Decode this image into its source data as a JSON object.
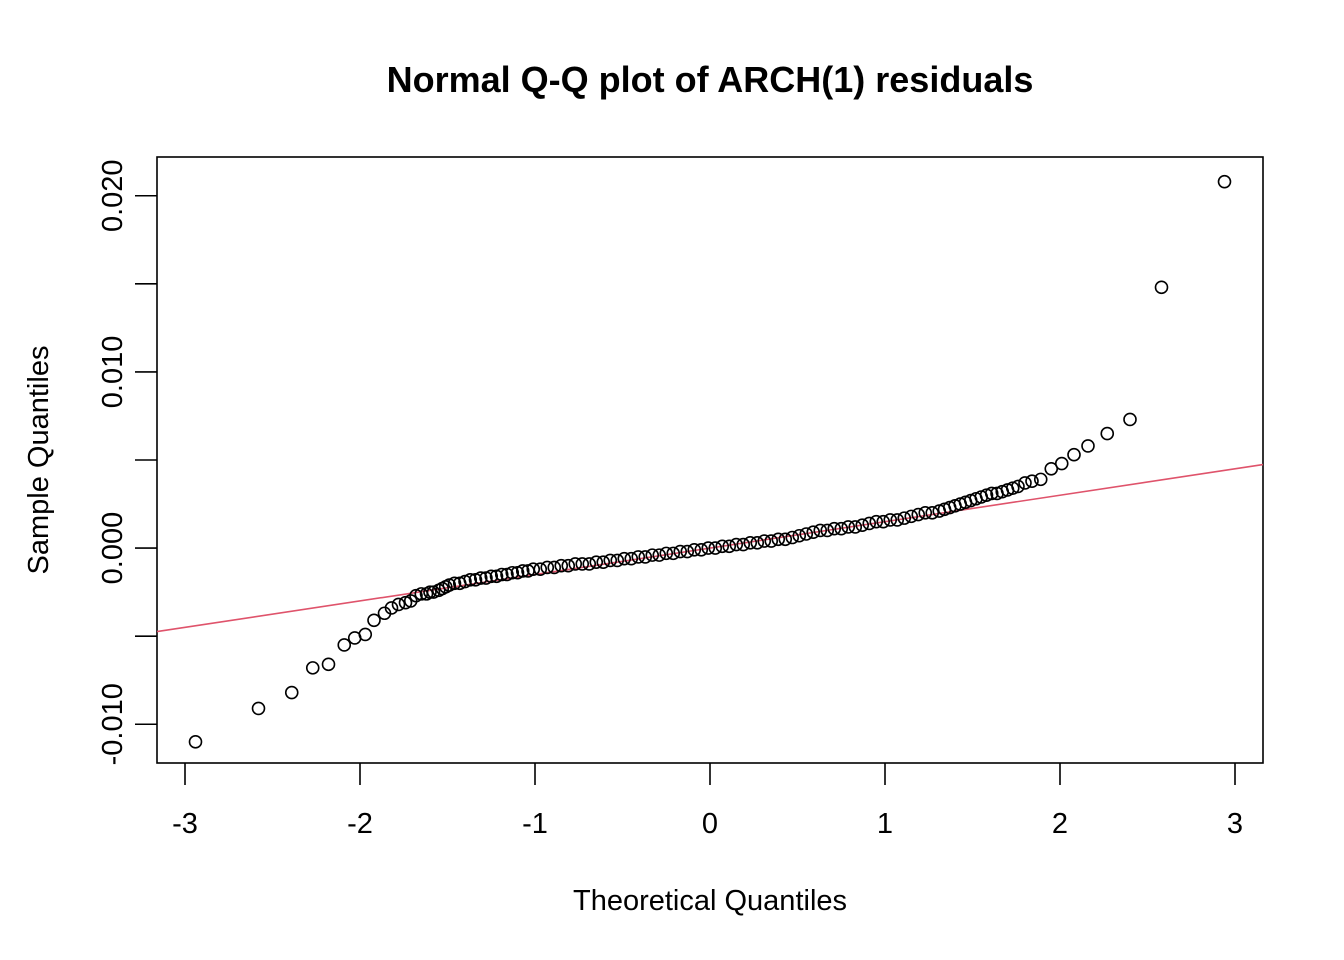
{
  "chart_data": {
    "type": "scatter",
    "title": "Normal Q-Q plot of ARCH(1) residuals",
    "xlabel": "Theoretical Quantiles",
    "ylabel": "Sample Quantiles",
    "xlim": [
      -3.16,
      3.16
    ],
    "ylim": [
      -0.0122,
      0.0222
    ],
    "xticks": [
      -3,
      -2,
      -1,
      0,
      1,
      2,
      3
    ],
    "xtick_labels": [
      "-3",
      "-2",
      "-1",
      "0",
      "1",
      "2",
      "3"
    ],
    "yticks": [
      -0.01,
      -0.005,
      0.0,
      0.005,
      0.01,
      0.015,
      0.02
    ],
    "ytick_labels": [
      "-0.010",
      "",
      "0.000",
      "",
      "0.010",
      "",
      "0.020"
    ],
    "grid": false,
    "reference_line": {
      "color": "#DF536B",
      "intercept": 0.0,
      "slope": 0.0015
    },
    "points": {
      "x": [
        -2.94,
        -2.58,
        -2.39,
        -2.27,
        -2.18,
        -2.09,
        -2.03,
        -1.97,
        -1.92,
        -1.86,
        -1.82,
        -1.78,
        -1.74,
        -1.71,
        -1.68,
        -1.65,
        -1.62,
        -1.6,
        -1.58,
        -1.55,
        -1.53,
        -1.51,
        -1.49,
        -1.46,
        -1.43,
        -1.4,
        -1.37,
        -1.34,
        -1.31,
        -1.28,
        -1.25,
        -1.22,
        -1.19,
        -1.16,
        -1.13,
        -1.1,
        -1.07,
        -1.04,
        -1.01,
        -0.97,
        -0.93,
        -0.89,
        -0.85,
        -0.81,
        -0.77,
        -0.73,
        -0.69,
        -0.65,
        -0.61,
        -0.57,
        -0.53,
        -0.49,
        -0.45,
        -0.41,
        -0.37,
        -0.33,
        -0.29,
        -0.25,
        -0.21,
        -0.17,
        -0.13,
        -0.09,
        -0.05,
        -0.01,
        0.03,
        0.07,
        0.11,
        0.15,
        0.19,
        0.23,
        0.27,
        0.31,
        0.35,
        0.39,
        0.43,
        0.47,
        0.51,
        0.55,
        0.59,
        0.63,
        0.67,
        0.71,
        0.75,
        0.79,
        0.83,
        0.87,
        0.91,
        0.95,
        0.99,
        1.03,
        1.07,
        1.11,
        1.15,
        1.19,
        1.23,
        1.27,
        1.31,
        1.34,
        1.37,
        1.4,
        1.43,
        1.46,
        1.49,
        1.52,
        1.55,
        1.58,
        1.61,
        1.64,
        1.67,
        1.7,
        1.73,
        1.76,
        1.8,
        1.84,
        1.89,
        1.95,
        2.01,
        2.08,
        2.16,
        2.27,
        2.4,
        2.58,
        2.94
      ],
      "y": [
        -0.011,
        -0.0091,
        -0.0082,
        -0.0068,
        -0.0066,
        -0.0055,
        -0.0051,
        -0.0049,
        -0.0041,
        -0.0037,
        -0.0034,
        -0.0032,
        -0.0031,
        -0.003,
        -0.0027,
        -0.0026,
        -0.0026,
        -0.0025,
        -0.0025,
        -0.0024,
        -0.0023,
        -0.0022,
        -0.0021,
        -0.002,
        -0.002,
        -0.0019,
        -0.0018,
        -0.0018,
        -0.0017,
        -0.0017,
        -0.0016,
        -0.0016,
        -0.0015,
        -0.0015,
        -0.0014,
        -0.0014,
        -0.0013,
        -0.0013,
        -0.0012,
        -0.0012,
        -0.0011,
        -0.0011,
        -0.001,
        -0.001,
        -0.0009,
        -0.0009,
        -0.0009,
        -0.0008,
        -0.0008,
        -0.0007,
        -0.0007,
        -0.0006,
        -0.0006,
        -0.0005,
        -0.0005,
        -0.0004,
        -0.0004,
        -0.0003,
        -0.0003,
        -0.0002,
        -0.0002,
        -0.0001,
        -0.0001,
        0.0,
        0.0,
        0.0001,
        0.0001,
        0.0002,
        0.0002,
        0.0003,
        0.0003,
        0.0004,
        0.0004,
        0.0005,
        0.0005,
        0.0006,
        0.0007,
        0.0008,
        0.0009,
        0.001,
        0.001,
        0.0011,
        0.0011,
        0.0012,
        0.0012,
        0.0013,
        0.0014,
        0.0015,
        0.0015,
        0.0016,
        0.0016,
        0.0017,
        0.0018,
        0.0019,
        0.002,
        0.002,
        0.0021,
        0.0022,
        0.0023,
        0.0024,
        0.0025,
        0.0026,
        0.0027,
        0.0028,
        0.0029,
        0.003,
        0.0031,
        0.0031,
        0.0032,
        0.0033,
        0.0034,
        0.0035,
        0.0037,
        0.0038,
        0.0039,
        0.0045,
        0.0048,
        0.0053,
        0.0058,
        0.0065,
        0.0073,
        0.0148,
        0.0208
      ]
    }
  }
}
